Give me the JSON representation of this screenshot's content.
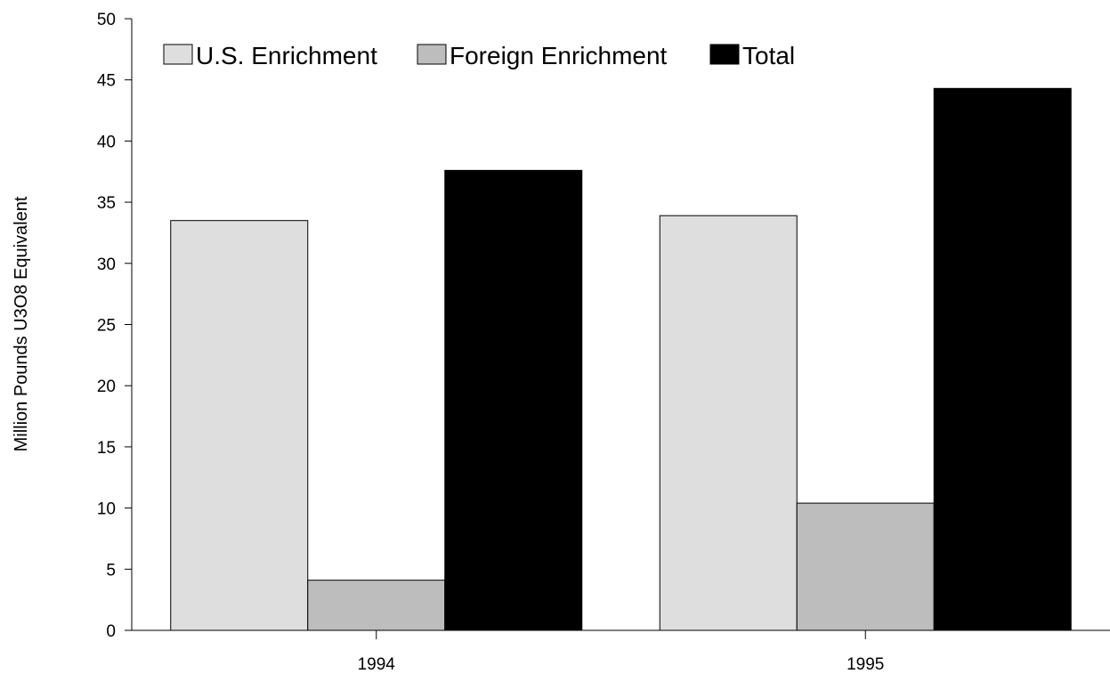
{
  "chart_data": {
    "type": "bar",
    "categories": [
      "1994",
      "1995"
    ],
    "series": [
      {
        "name": "U.S. Enrichment",
        "values": [
          33.5,
          33.9
        ],
        "color": "#dedede"
      },
      {
        "name": "Foreign Enrichment",
        "values": [
          4.1,
          10.4
        ],
        "color": "#bdbdbd"
      },
      {
        "name": "Total",
        "values": [
          37.6,
          44.3
        ],
        "color": "#000000"
      }
    ],
    "title": "",
    "xlabel": "",
    "ylabel": "Million Pounds U3O8 Equivalent",
    "ylim": [
      0,
      50
    ],
    "yticks": [
      "0",
      "5",
      "10",
      "15",
      "20",
      "25",
      "30",
      "35",
      "40",
      "45",
      "50"
    ],
    "grid": false,
    "legend_position": "top-left"
  }
}
